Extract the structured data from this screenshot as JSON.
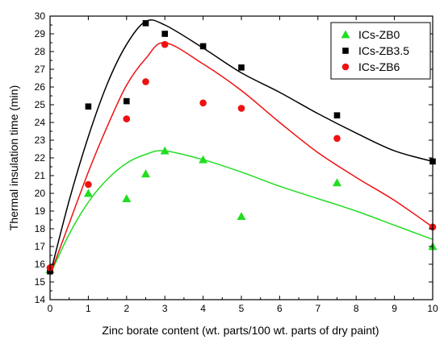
{
  "chart_data": {
    "type": "scatter",
    "xlabel": "Zinc borate content (wt. parts/100 wt. parts of dry paint)",
    "ylabel": "Thermal insulation time (min)",
    "xlim": [
      0,
      10
    ],
    "ylim": [
      14,
      30
    ],
    "xticks": [
      0,
      1,
      2,
      3,
      4,
      5,
      6,
      7,
      8,
      9,
      10
    ],
    "yticks": [
      14,
      15,
      16,
      17,
      18,
      19,
      20,
      21,
      22,
      23,
      24,
      25,
      26,
      27,
      28,
      29,
      30
    ],
    "grid": false,
    "legend_position": "top-right",
    "series": [
      {
        "name": "ICs-ZB0",
        "marker": "triangle",
        "color": "#22dd22",
        "x": [
          0,
          1,
          2,
          2.5,
          3,
          4,
          5,
          7.5,
          10
        ],
        "y": [
          15.7,
          20.0,
          19.7,
          21.1,
          22.4,
          21.9,
          18.7,
          20.6,
          17.0
        ],
        "fit_x": [
          0,
          0.5,
          1,
          1.5,
          2,
          2.5,
          3,
          4,
          5,
          6,
          7,
          8,
          9,
          10
        ],
        "fit_y": [
          15.4,
          17.7,
          19.5,
          20.8,
          21.7,
          22.2,
          22.4,
          21.9,
          21.2,
          20.4,
          19.7,
          19.0,
          18.2,
          17.4
        ]
      },
      {
        "name": "ICs-ZB3.5",
        "marker": "square",
        "color": "#000000",
        "x": [
          0,
          1,
          2,
          2.5,
          3,
          4,
          5,
          7.5,
          10
        ],
        "y": [
          15.6,
          24.9,
          25.2,
          29.6,
          29.0,
          28.3,
          27.1,
          24.4,
          21.8
        ],
        "fit_x": [
          0,
          0.5,
          1,
          1.5,
          2,
          2.5,
          3,
          4,
          5,
          6,
          7,
          8,
          9,
          10
        ],
        "fit_y": [
          15.4,
          19.6,
          23.2,
          26.2,
          28.4,
          29.7,
          29.5,
          28.2,
          26.8,
          25.7,
          24.5,
          23.4,
          22.4,
          21.8
        ],
        "line_color": "#000000"
      },
      {
        "name": "ICs-ZB6",
        "marker": "circle",
        "color": "#ee1111",
        "x": [
          0,
          1,
          2,
          2.5,
          3,
          4,
          5,
          7.5,
          10
        ],
        "y": [
          15.8,
          20.5,
          24.2,
          26.3,
          28.4,
          25.1,
          24.8,
          23.1,
          18.1
        ],
        "fit_x": [
          0,
          0.5,
          1,
          1.5,
          2,
          2.5,
          3,
          4,
          5,
          6,
          7,
          8,
          9,
          10
        ],
        "fit_y": [
          15.4,
          18.3,
          21.2,
          23.8,
          26.1,
          27.6,
          28.5,
          27.3,
          25.8,
          24.0,
          22.3,
          20.9,
          19.6,
          18.1
        ],
        "line_color": "#ee1111"
      }
    ]
  }
}
